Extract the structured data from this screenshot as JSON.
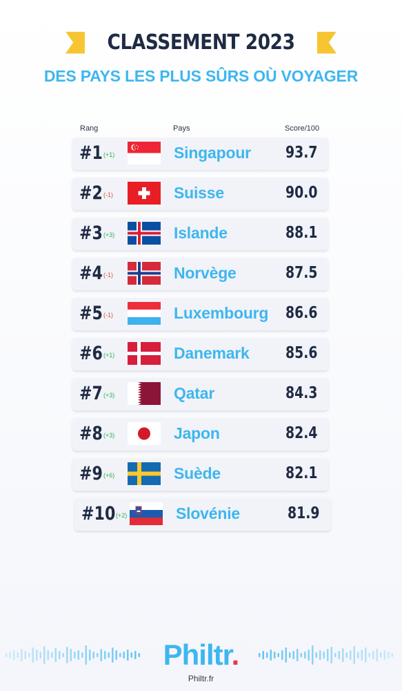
{
  "header": {
    "title": "CLASSEMENT 2023",
    "subtitle": "DES PAYS LES PLUS SÛRS OÙ VOYAGER"
  },
  "columns": {
    "rank": "Rang",
    "country": "Pays",
    "score": "Score/100"
  },
  "rows": [
    {
      "rank": "#1",
      "change": "(+1)",
      "direction": "up",
      "flag": "singapore-flag",
      "country": "Singapour",
      "score": "93.7"
    },
    {
      "rank": "#2",
      "change": "(-1)",
      "direction": "down",
      "flag": "switzerland-flag",
      "country": "Suisse",
      "score": "90.0"
    },
    {
      "rank": "#3",
      "change": "(+3)",
      "direction": "up",
      "flag": "iceland-flag",
      "country": "Islande",
      "score": "88.1"
    },
    {
      "rank": "#4",
      "change": "(-1)",
      "direction": "down",
      "flag": "norway-flag",
      "country": "Norvège",
      "score": "87.5"
    },
    {
      "rank": "#5",
      "change": "(-1)",
      "direction": "down",
      "flag": "luxembourg-flag",
      "country": "Luxembourg",
      "score": "86.6"
    },
    {
      "rank": "#6",
      "change": "(+1)",
      "direction": "up",
      "flag": "denmark-flag",
      "country": "Danemark",
      "score": "85.6"
    },
    {
      "rank": "#7",
      "change": "(+3)",
      "direction": "up",
      "flag": "qatar-flag",
      "country": "Qatar",
      "score": "84.3"
    },
    {
      "rank": "#8",
      "change": "(+3)",
      "direction": "up",
      "flag": "japan-flag",
      "country": "Japon",
      "score": "82.4"
    },
    {
      "rank": "#9",
      "change": "(+6)",
      "direction": "up",
      "flag": "sweden-flag",
      "country": "Suède",
      "score": "82.1"
    },
    {
      "rank": "#10",
      "change": "(+2)",
      "direction": "up",
      "flag": "slovenia-flag",
      "country": "Slovénie",
      "score": "81.9"
    }
  ],
  "colors": {
    "accent": "#3eb6ef",
    "title": "#1f2b44",
    "ribbon": "#f6c531",
    "up": "#2bb24c",
    "down": "#e0513b",
    "logo_dot": "#e63946"
  },
  "footer": {
    "logo_text": "Philtr",
    "logo_dot": ".",
    "site": "Philtr.fr"
  }
}
